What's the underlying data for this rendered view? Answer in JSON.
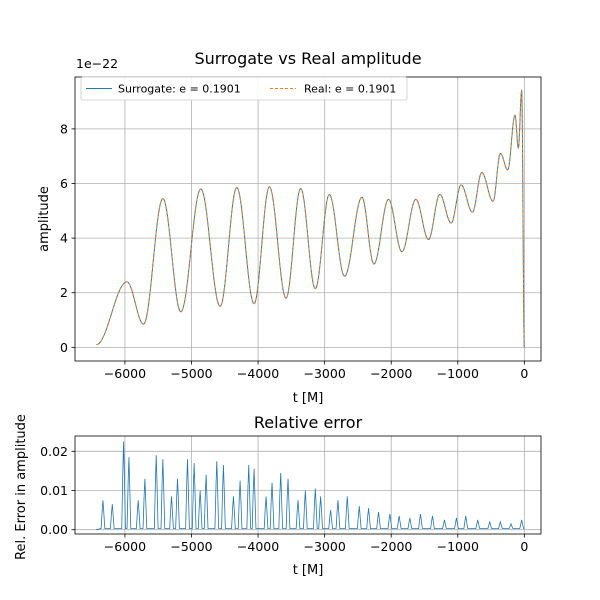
{
  "chart_data": [
    {
      "type": "line",
      "title": "Surrogate vs Real amplitude",
      "xlabel": "t [M]",
      "ylabel": "amplitude",
      "y_offset_label": "1e−22",
      "xlim": [
        -6750,
        250
      ],
      "ylim": [
        -0.5,
        9.9
      ],
      "xticks": [
        -6000,
        -5000,
        -4000,
        -3000,
        -2000,
        -1000,
        0
      ],
      "xtick_labels": [
        "−6000",
        "−5000",
        "−4000",
        "−3000",
        "−2000",
        "−1000",
        "0"
      ],
      "yticks": [
        0,
        2,
        4,
        6,
        8
      ],
      "ytick_labels": [
        "0",
        "2",
        "4",
        "6",
        "8"
      ],
      "grid": true,
      "legend_position": "upper-left",
      "peaks": {
        "t": [
          -5970,
          -5430,
          -4860,
          -4320,
          -3830,
          -3360,
          -2930,
          -2440,
          -2040,
          -1630,
          -1270,
          -950,
          -640,
          -360,
          -140,
          -40
        ],
        "amp": [
          2.4,
          5.45,
          5.8,
          5.85,
          5.88,
          5.82,
          5.6,
          5.5,
          5.42,
          5.42,
          5.6,
          5.95,
          6.4,
          7.1,
          8.5,
          9.4
        ]
      },
      "troughs": {
        "t": [
          -6430,
          -5720,
          -5160,
          -4570,
          -4060,
          -3580,
          -3140,
          -2700,
          -2260,
          -1840,
          -1440,
          -1100,
          -780,
          -470,
          -250,
          -90,
          0
        ],
        "amp": [
          0.1,
          0.85,
          1.3,
          1.5,
          1.6,
          1.8,
          2.15,
          2.6,
          3.05,
          3.5,
          3.95,
          4.55,
          4.95,
          5.35,
          6.5,
          7.3,
          0.0
        ]
      },
      "series": [
        {
          "name": "Surrogate: e = 0.1901",
          "color": "#1f77b4",
          "style": "solid"
        },
        {
          "name": "Real: e = 0.1901",
          "color": "#ff7f0e",
          "style": "dashed"
        }
      ]
    },
    {
      "type": "line",
      "title": "Relative error",
      "xlabel": "t [M]",
      "ylabel": "Rel. Error in amplitude",
      "xlim": [
        -6750,
        250
      ],
      "ylim": [
        -0.0011,
        0.0239
      ],
      "xticks": [
        -6000,
        -5000,
        -4000,
        -3000,
        -2000,
        -1000,
        0
      ],
      "xtick_labels": [
        "−6000",
        "−5000",
        "−4000",
        "−3000",
        "−2000",
        "−1000",
        "0"
      ],
      "yticks": [
        0.0,
        0.01,
        0.02
      ],
      "ytick_labels": [
        "0.00",
        "0.01",
        "0.02"
      ],
      "grid": true,
      "series": [
        {
          "color": "#1f77b4",
          "peak_t": [
            -6330,
            -6190,
            -6020,
            -5940,
            -5800,
            -5700,
            -5530,
            -5430,
            -5300,
            -5210,
            -5060,
            -4960,
            -4870,
            -4780,
            -4620,
            -4520,
            -4370,
            -4270,
            -4140,
            -4060,
            -3880,
            -3790,
            -3660,
            -3550,
            -3400,
            -3290,
            -3140,
            -3060,
            -2910,
            -2800,
            -2660,
            -2480,
            -2340,
            -2190,
            -2020,
            -1880,
            -1720,
            -1560,
            -1380,
            -1200,
            -1020,
            -880,
            -700,
            -520,
            -360,
            -200,
            -40
          ],
          "peak_v": [
            0.0075,
            0.0065,
            0.0225,
            0.0185,
            0.0075,
            0.013,
            0.019,
            0.018,
            0.0085,
            0.013,
            0.018,
            0.017,
            0.01,
            0.014,
            0.0175,
            0.0165,
            0.0085,
            0.0125,
            0.0165,
            0.0155,
            0.0085,
            0.012,
            0.0145,
            0.013,
            0.0075,
            0.01,
            0.0105,
            0.0085,
            0.005,
            0.0075,
            0.0085,
            0.006,
            0.0055,
            0.0045,
            0.004,
            0.0035,
            0.003,
            0.004,
            0.0035,
            0.0025,
            0.003,
            0.0035,
            0.0025,
            0.002,
            0.002,
            0.0015,
            0.0025
          ]
        }
      ]
    }
  ]
}
